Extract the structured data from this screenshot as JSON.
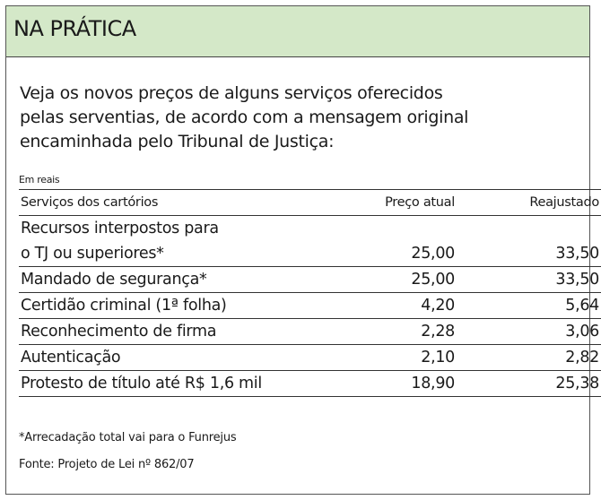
{
  "header": {
    "title": "NA PRÁTICA"
  },
  "intro": {
    "text": "Veja os novos preços de alguns serviços oferecidos pelas serventias, de acordo com a mensagem original encaminhada pelo Tribunal de Justiça:",
    "lines": [
      "Veja os novos preços de alguns serviços oferecidos",
      "pelas serventias, de acordo com a mensagem original",
      "encaminhada pelo Tribunal de Justiça:"
    ]
  },
  "table": {
    "unit_note": "Em reais",
    "columns": [
      "Serviços dos cartórios",
      "Preço atual",
      "Reajustado"
    ],
    "rows": [
      {
        "service_line1": "Recursos interpostos para",
        "service": "o TJ ou superiores*",
        "current": "25,00",
        "adjusted": "33,50"
      },
      {
        "service": "Mandado de segurança*",
        "current": "25,00",
        "adjusted": "33,50"
      },
      {
        "service": "Certidão criminal (1ª folha)",
        "current": "4,20",
        "adjusted": "5,64"
      },
      {
        "service": "Reconhecimento de firma",
        "current": "2,28",
        "adjusted": "3,06"
      },
      {
        "service": "Autenticação",
        "current": "2,10",
        "adjusted": "2,82"
      },
      {
        "service": "Protesto de título até R$ 1,6 mil",
        "current": "18,90",
        "adjusted": "25,38"
      }
    ]
  },
  "footnote": "*Arrecadação total vai para o Funrejus",
  "source": "Fonte: Projeto de Lei nº 862/07",
  "colors": {
    "header_bg": "#d4e8c8",
    "text": "#1a1a1a",
    "rule": "#333333"
  }
}
